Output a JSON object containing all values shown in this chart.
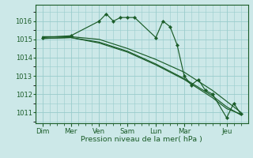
{
  "background_color": "#cce8e8",
  "grid_color": "#99cccc",
  "line_color": "#1a5c28",
  "xlabel": "Pression niveau de la mer( hPa )",
  "ylim": [
    1010.4,
    1016.9
  ],
  "yticks": [
    1011,
    1012,
    1013,
    1014,
    1015,
    1016
  ],
  "n_days": 7,
  "day_labels": [
    "Dim",
    "Mer",
    "Ven",
    "Sam",
    "Lun",
    "Mar",
    "Jeu"
  ],
  "day_positions": [
    0,
    2,
    4,
    6,
    8,
    10,
    13
  ],
  "series": [
    {
      "x": [
        0,
        2,
        4,
        4.5,
        5.0,
        5.5,
        6.0,
        6.5,
        8.0,
        8.5,
        9.0,
        9.5,
        10.0,
        10.5,
        11.0,
        11.5,
        12.0,
        13.0,
        13.5,
        14.0
      ],
      "y": [
        1015.1,
        1015.2,
        1016.0,
        1016.4,
        1016.0,
        1016.2,
        1016.2,
        1016.2,
        1015.1,
        1016.0,
        1015.7,
        1014.7,
        1013.0,
        1012.5,
        1012.8,
        1012.2,
        1012.0,
        1010.7,
        1011.5,
        1010.9
      ],
      "markers": true
    },
    {
      "x": [
        0,
        2,
        4,
        6,
        8,
        10,
        12,
        13,
        14
      ],
      "y": [
        1015.05,
        1015.1,
        1014.8,
        1014.3,
        1013.6,
        1012.8,
        1011.8,
        1011.2,
        1010.9
      ],
      "markers": false
    },
    {
      "x": [
        0,
        2,
        4,
        6,
        8,
        10,
        12,
        13,
        14
      ],
      "y": [
        1015.15,
        1015.15,
        1015.0,
        1014.5,
        1013.9,
        1013.2,
        1012.2,
        1011.6,
        1011.0
      ],
      "markers": false
    },
    {
      "x": [
        0,
        2,
        4,
        6,
        8,
        10,
        12,
        13,
        14
      ],
      "y": [
        1015.05,
        1015.1,
        1014.85,
        1014.35,
        1013.65,
        1012.85,
        1011.9,
        1011.3,
        1010.85
      ],
      "markers": false
    }
  ]
}
